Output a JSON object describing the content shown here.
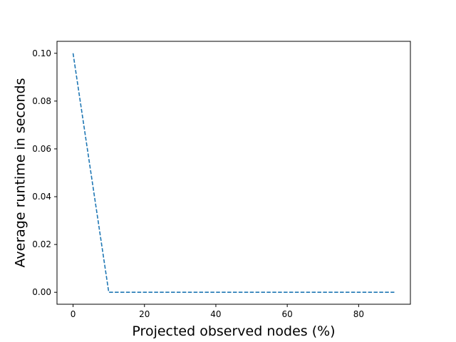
{
  "chart_data": {
    "type": "line",
    "title": "",
    "xlabel": "Projected observed nodes (%)",
    "ylabel": "Average runtime in seconds",
    "xlim": [
      -4.5,
      94.5
    ],
    "ylim": [
      -0.005,
      0.105
    ],
    "x_ticks": [
      0,
      20,
      40,
      60,
      80
    ],
    "x_tick_labels": [
      "0",
      "20",
      "40",
      "60",
      "80"
    ],
    "y_ticks": [
      0.0,
      0.02,
      0.04,
      0.06,
      0.08,
      0.1
    ],
    "y_tick_labels": [
      "0.00",
      "0.02",
      "0.04",
      "0.06",
      "0.08",
      "0.10"
    ],
    "grid": false,
    "legend": "none",
    "series": [
      {
        "color": "#1f77b4",
        "line_style": "dashed",
        "x": [
          0,
          10,
          20,
          30,
          40,
          50,
          60,
          70,
          80,
          90
        ],
        "y": [
          0.1,
          0.0,
          0.0,
          0.0,
          0.0,
          0.0,
          0.0,
          0.0,
          0.0,
          0.0
        ]
      }
    ]
  }
}
